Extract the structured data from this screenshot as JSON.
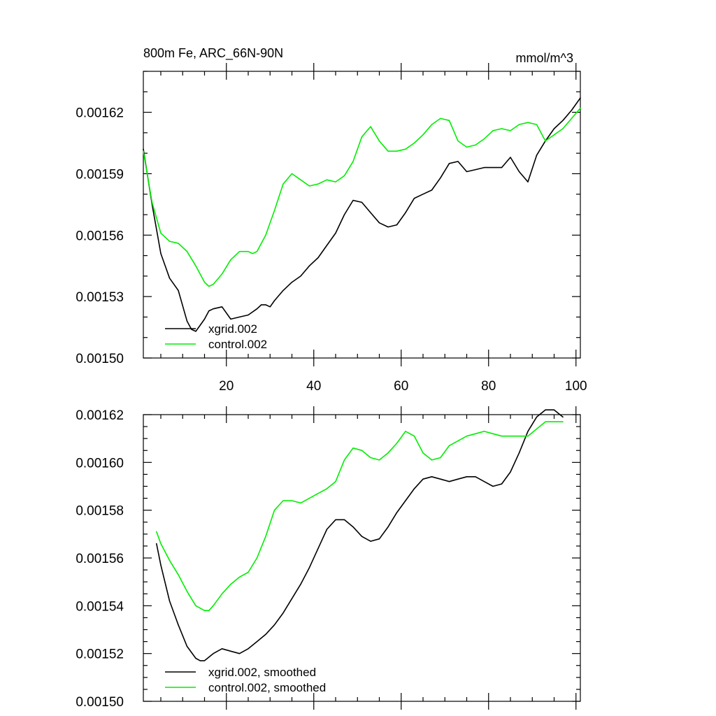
{
  "chart_data": [
    {
      "type": "line",
      "title": "800m Fe, ARC_66N-90N",
      "title_right": "mmol/m^3",
      "xlim": [
        1,
        101
      ],
      "ylim": [
        0.0015,
        0.00164
      ],
      "xticks": [
        20,
        40,
        60,
        80,
        100
      ],
      "xtick_labels": [
        "20",
        "40",
        "60",
        "80",
        "100"
      ],
      "yticks": [
        0.0015,
        0.00153,
        0.00156,
        0.00159,
        0.00162
      ],
      "ytick_labels": [
        "0.00150",
        "0.00153",
        "0.00156",
        "0.00159",
        "0.00162"
      ],
      "legend_position": "bottom-left",
      "series": [
        {
          "name": "xgrid.002",
          "color": "#000000",
          "x": [
            1,
            3,
            5,
            7,
            9,
            11,
            12,
            13,
            14,
            15,
            16,
            17,
            19,
            21,
            23,
            25,
            27,
            28,
            29,
            30,
            31,
            33,
            35,
            37,
            39,
            41,
            43,
            45,
            47,
            49,
            51,
            53,
            55,
            57,
            59,
            61,
            63,
            65,
            67,
            69,
            71,
            73,
            75,
            77,
            79,
            81,
            83,
            85,
            87,
            89,
            91,
            93,
            95,
            97,
            99,
            101
          ],
          "y": [
            0.001602,
            0.001575,
            0.001551,
            0.001539,
            0.001533,
            0.001518,
            0.001514,
            0.001513,
            0.001516,
            0.001519,
            0.001523,
            0.001524,
            0.001525,
            0.001519,
            0.00152,
            0.001521,
            0.001524,
            0.001526,
            0.001526,
            0.001525,
            0.001528,
            0.001533,
            0.001537,
            0.00154,
            0.001545,
            0.001549,
            0.001555,
            0.001561,
            0.00157,
            0.001577,
            0.001576,
            0.001571,
            0.001566,
            0.001564,
            0.001565,
            0.001571,
            0.001578,
            0.00158,
            0.001582,
            0.001588,
            0.001595,
            0.001596,
            0.001591,
            0.001592,
            0.001593,
            0.001593,
            0.001593,
            0.001598,
            0.001591,
            0.001586,
            0.001599,
            0.001606,
            0.001612,
            0.001616,
            0.001621,
            0.001627
          ]
        },
        {
          "name": "control.002",
          "color": "#00ee00",
          "x": [
            1,
            3,
            5,
            7,
            9,
            11,
            13,
            15,
            16,
            17,
            19,
            21,
            23,
            25,
            26,
            27,
            29,
            31,
            33,
            35,
            37,
            39,
            41,
            43,
            45,
            47,
            49,
            51,
            53,
            55,
            57,
            59,
            61,
            63,
            65,
            67,
            69,
            71,
            73,
            75,
            77,
            79,
            81,
            83,
            85,
            87,
            89,
            91,
            93,
            95,
            97,
            99,
            101
          ],
          "y": [
            0.001601,
            0.001576,
            0.001561,
            0.001557,
            0.001556,
            0.001552,
            0.001545,
            0.001537,
            0.001535,
            0.001536,
            0.001541,
            0.001548,
            0.001552,
            0.001552,
            0.001551,
            0.001552,
            0.00156,
            0.001572,
            0.001585,
            0.00159,
            0.001587,
            0.001584,
            0.001585,
            0.001587,
            0.001586,
            0.001589,
            0.001596,
            0.001608,
            0.001613,
            0.001606,
            0.001601,
            0.001601,
            0.001602,
            0.001605,
            0.001609,
            0.001614,
            0.001617,
            0.001616,
            0.001606,
            0.001603,
            0.001604,
            0.001607,
            0.001611,
            0.001612,
            0.001611,
            0.001614,
            0.001615,
            0.001614,
            0.001606,
            0.001609,
            0.001612,
            0.001617,
            0.001622
          ]
        }
      ]
    },
    {
      "type": "line",
      "xlim": [
        1,
        101
      ],
      "ylim": [
        0.0015,
        0.00162
      ],
      "xticks": [
        20,
        40,
        60,
        80,
        100
      ],
      "yticks": [
        0.0015,
        0.00152,
        0.00154,
        0.00156,
        0.00158,
        0.0016,
        0.00162
      ],
      "ytick_labels": [
        "0.00150",
        "0.00152",
        "0.00154",
        "0.00156",
        "0.00158",
        "0.00160",
        "0.00162"
      ],
      "legend_position": "bottom-left",
      "series": [
        {
          "name": "xgrid.002, smoothed",
          "color": "#000000",
          "x": [
            4,
            5,
            7,
            9,
            11,
            13,
            14,
            15,
            17,
            19,
            21,
            23,
            25,
            27,
            29,
            31,
            33,
            35,
            37,
            39,
            41,
            43,
            45,
            47,
            49,
            51,
            53,
            55,
            57,
            59,
            61,
            63,
            65,
            67,
            69,
            71,
            73,
            75,
            77,
            79,
            81,
            83,
            85,
            87,
            89,
            91,
            93,
            95,
            97
          ],
          "y": [
            0.001566,
            0.001557,
            0.001542,
            0.001532,
            0.001523,
            0.001518,
            0.001517,
            0.001517,
            0.00152,
            0.001522,
            0.001521,
            0.00152,
            0.001522,
            0.001525,
            0.001528,
            0.001532,
            0.001537,
            0.001543,
            0.001549,
            0.001556,
            0.001564,
            0.001572,
            0.001576,
            0.001576,
            0.001573,
            0.001569,
            0.001567,
            0.001568,
            0.001573,
            0.001579,
            0.001584,
            0.001589,
            0.001593,
            0.001594,
            0.001593,
            0.001592,
            0.001593,
            0.001594,
            0.001594,
            0.001592,
            0.00159,
            0.001591,
            0.001596,
            0.001604,
            0.001613,
            0.001619,
            0.001622,
            0.001622,
            0.001619
          ]
        },
        {
          "name": "control.002, smoothed",
          "color": "#00ee00",
          "x": [
            4,
            5,
            7,
            9,
            11,
            13,
            15,
            16,
            17,
            19,
            21,
            23,
            25,
            27,
            29,
            31,
            33,
            35,
            37,
            39,
            41,
            43,
            45,
            47,
            49,
            51,
            53,
            55,
            57,
            59,
            61,
            63,
            65,
            67,
            69,
            71,
            73,
            75,
            77,
            79,
            81,
            83,
            85,
            87,
            89,
            91,
            93,
            95,
            97
          ],
          "y": [
            0.001571,
            0.001566,
            0.001559,
            0.001553,
            0.001546,
            0.00154,
            0.001538,
            0.001538,
            0.00154,
            0.001545,
            0.001549,
            0.001552,
            0.001554,
            0.00156,
            0.001569,
            0.00158,
            0.001584,
            0.001584,
            0.001583,
            0.001585,
            0.001587,
            0.001589,
            0.001592,
            0.001601,
            0.001606,
            0.001605,
            0.001602,
            0.001601,
            0.001604,
            0.001608,
            0.001613,
            0.001611,
            0.001604,
            0.001601,
            0.001602,
            0.001607,
            0.001609,
            0.001611,
            0.001612,
            0.001613,
            0.001612,
            0.001611,
            0.001611,
            0.001611,
            0.001611,
            0.001614,
            0.001617,
            0.001617,
            0.001617
          ]
        }
      ]
    }
  ]
}
